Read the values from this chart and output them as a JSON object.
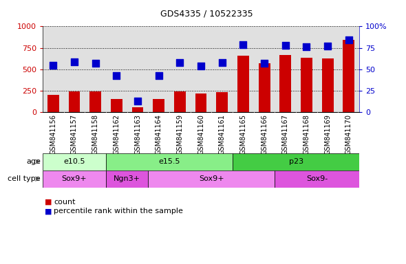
{
  "title": "GDS4335 / 10522335",
  "samples": [
    "GSM841156",
    "GSM841157",
    "GSM841158",
    "GSM841162",
    "GSM841163",
    "GSM841164",
    "GSM841159",
    "GSM841160",
    "GSM841161",
    "GSM841165",
    "GSM841166",
    "GSM841167",
    "GSM841168",
    "GSM841169",
    "GSM841170"
  ],
  "counts": [
    200,
    245,
    245,
    155,
    55,
    155,
    240,
    220,
    235,
    660,
    570,
    670,
    635,
    630,
    840
  ],
  "percentile_ranks": [
    55,
    59,
    57,
    43,
    13,
    43,
    58,
    54,
    58,
    79,
    57,
    78,
    76,
    77,
    84
  ],
  "ylim_left": [
    0,
    1000
  ],
  "ylim_right": [
    0,
    100
  ],
  "yticks_left": [
    0,
    250,
    500,
    750,
    1000
  ],
  "yticks_right": [
    0,
    25,
    50,
    75,
    100
  ],
  "bar_color": "#cc0000",
  "dot_color": "#0000cc",
  "age_groups": [
    {
      "label": "e10.5",
      "start": 0,
      "end": 3,
      "color": "#ccffcc"
    },
    {
      "label": "e15.5",
      "start": 3,
      "end": 9,
      "color": "#88ee88"
    },
    {
      "label": "p23",
      "start": 9,
      "end": 15,
      "color": "#44cc44"
    }
  ],
  "cell_type_groups": [
    {
      "label": "Sox9+",
      "start": 0,
      "end": 3,
      "color": "#ee88ee"
    },
    {
      "label": "Ngn3+",
      "start": 3,
      "end": 5,
      "color": "#dd55dd"
    },
    {
      "label": "Sox9+",
      "start": 5,
      "end": 11,
      "color": "#ee88ee"
    },
    {
      "label": "Sox9-",
      "start": 11,
      "end": 15,
      "color": "#dd55dd"
    }
  ],
  "bar_width": 0.55,
  "dot_size": 50,
  "age_label": "age",
  "cell_type_label": "cell type",
  "legend_count_label": "count",
  "legend_pct_label": "percentile rank within the sample",
  "plot_bg_color": "#e0e0e0",
  "right_axis_color": "#0000cc",
  "left_axis_color": "#cc0000"
}
